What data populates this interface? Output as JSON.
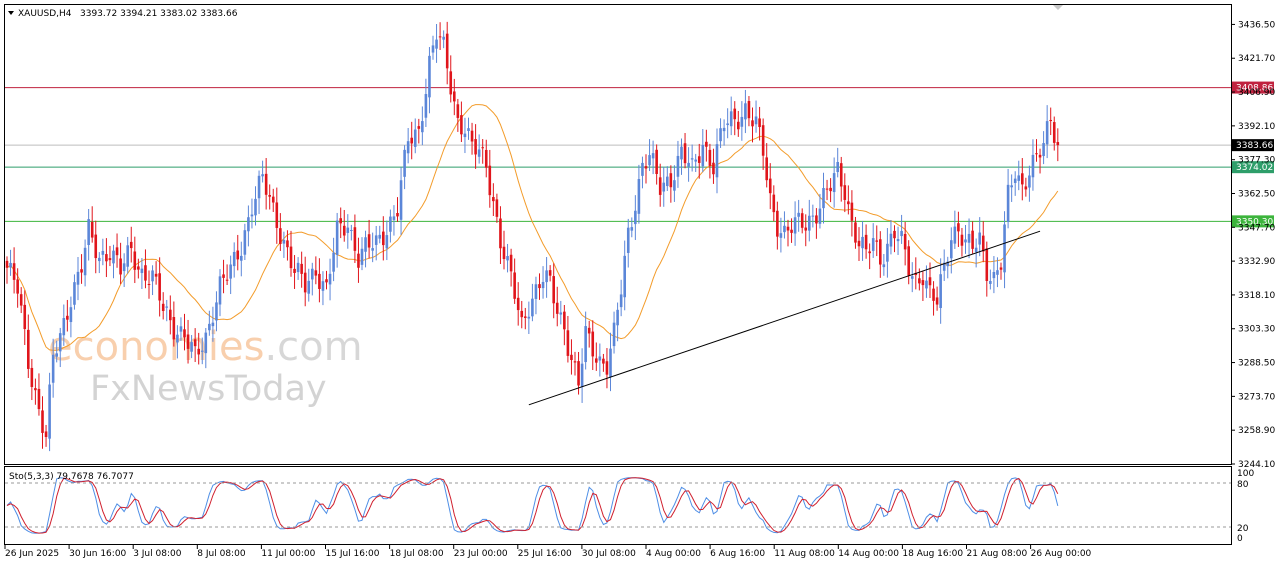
{
  "header": {
    "symbol": "XAUUSD,H4",
    "ohlc": "3393.72 3394.21 3383.02 3383.66"
  },
  "watermark": {
    "line1_a": "economies",
    "line1_b": ".com",
    "line2": "FxNewsToday"
  },
  "indicator": {
    "label": "Sto(5,3,3) 79.7678 76.7077",
    "levels": [
      "100",
      "80",
      "20",
      "0"
    ]
  },
  "colors": {
    "bull": "#5b86d8",
    "bear": "#e0151b",
    "ma": "#f39c2b",
    "resistance": "#c0223f",
    "support1": "#2e9e6a",
    "support2": "#3cb43c",
    "trendline": "#000000",
    "stoch_main": "#4f8fe6",
    "stoch_signal": "#d0202e"
  },
  "chart_data": {
    "type": "candlestick",
    "symbol": "XAUUSD",
    "timeframe": "H4",
    "ylim": [
      3244.1,
      3445.0
    ],
    "y_ticks": [
      "3436.50",
      "3421.70",
      "3406.90",
      "3392.10",
      "3377.30",
      "3362.50",
      "3347.70",
      "3332.90",
      "3318.10",
      "3303.30",
      "3288.50",
      "3273.70",
      "3258.90",
      "3244.10"
    ],
    "x_ticks": [
      "26 Jun 2025",
      "30 Jun 16:00",
      "3 Jul 08:00",
      "8 Jul 08:00",
      "11 Jul 00:00",
      "15 Jul 16:00",
      "18 Jul 08:00",
      "23 Jul 00:00",
      "25 Jul 16:00",
      "30 Jul 08:00",
      "4 Aug 00:00",
      "6 Aug 16:00",
      "11 Aug 08:00",
      "14 Aug 00:00",
      "18 Aug 16:00",
      "21 Aug 08:00",
      "26 Aug 00:00"
    ],
    "current_price": "3383.66",
    "levels": [
      {
        "price": 3408.86,
        "label": "3408.86",
        "kind": "resistance"
      },
      {
        "price": 3374.02,
        "label": "3374.02",
        "kind": "support1"
      },
      {
        "price": 3350.3,
        "label": "3350.30",
        "kind": "support2"
      }
    ],
    "trendline": [
      {
        "bar": 147,
        "price": 3270
      },
      {
        "bar": 291,
        "price": 3346
      }
    ],
    "close_path": [
      [
        0,
        3330
      ],
      [
        3,
        3320
      ],
      [
        6,
        3290
      ],
      [
        9,
        3268
      ],
      [
        11,
        3255
      ],
      [
        13,
        3290
      ],
      [
        15,
        3300
      ],
      [
        18,
        3318
      ],
      [
        21,
        3330
      ],
      [
        23,
        3345
      ],
      [
        26,
        3335
      ],
      [
        29,
        3338
      ],
      [
        32,
        3328
      ],
      [
        35,
        3338
      ],
      [
        38,
        3328
      ],
      [
        41,
        3325
      ],
      [
        44,
        3312
      ],
      [
        47,
        3305
      ],
      [
        50,
        3300
      ],
      [
        53,
        3290
      ],
      [
        56,
        3300
      ],
      [
        58,
        3312
      ],
      [
        60,
        3322
      ],
      [
        63,
        3328
      ],
      [
        66,
        3340
      ],
      [
        69,
        3358
      ],
      [
        72,
        3368
      ],
      [
        75,
        3355
      ],
      [
        78,
        3342
      ],
      [
        81,
        3328
      ],
      [
        84,
        3322
      ],
      [
        87,
        3330
      ],
      [
        90,
        3320
      ],
      [
        93,
        3345
      ],
      [
        96,
        3350
      ],
      [
        99,
        3335
      ],
      [
        101,
        3338
      ],
      [
        104,
        3340
      ],
      [
        107,
        3348
      ],
      [
        110,
        3356
      ],
      [
        113,
        3385
      ],
      [
        116,
        3390
      ],
      [
        119,
        3420
      ],
      [
        121,
        3432
      ],
      [
        123,
        3425
      ],
      [
        125,
        3410
      ],
      [
        127,
        3395
      ],
      [
        129,
        3392
      ],
      [
        131,
        3382
      ],
      [
        133,
        3380
      ],
      [
        135,
        3375
      ],
      [
        137,
        3360
      ],
      [
        139,
        3342
      ],
      [
        141,
        3330
      ],
      [
        143,
        3318
      ],
      [
        145,
        3305
      ],
      [
        147,
        3315
      ],
      [
        149,
        3320
      ],
      [
        151,
        3325
      ],
      [
        153,
        3322
      ],
      [
        155,
        3312
      ],
      [
        157,
        3305
      ],
      [
        159,
        3290
      ],
      [
        161,
        3278
      ],
      [
        163,
        3300
      ],
      [
        165,
        3295
      ],
      [
        167,
        3290
      ],
      [
        169,
        3288
      ],
      [
        171,
        3300
      ],
      [
        173,
        3320
      ],
      [
        175,
        3345
      ],
      [
        177,
        3360
      ],
      [
        179,
        3375
      ],
      [
        181,
        3378
      ],
      [
        184,
        3365
      ],
      [
        187,
        3370
      ],
      [
        190,
        3380
      ],
      [
        193,
        3372
      ],
      [
        196,
        3385
      ],
      [
        199,
        3375
      ],
      [
        202,
        3392
      ],
      [
        205,
        3395
      ],
      [
        208,
        3400
      ],
      [
        211,
        3392
      ],
      [
        213,
        3380
      ],
      [
        215,
        3360
      ],
      [
        217,
        3350
      ],
      [
        219,
        3345
      ],
      [
        222,
        3348
      ],
      [
        225,
        3350
      ],
      [
        228,
        3355
      ],
      [
        230,
        3360
      ],
      [
        232,
        3365
      ],
      [
        234,
        3372
      ],
      [
        236,
        3365
      ],
      [
        238,
        3350
      ],
      [
        240,
        3340
      ],
      [
        242,
        3335
      ],
      [
        244,
        3342
      ],
      [
        246,
        3335
      ],
      [
        248,
        3340
      ],
      [
        250,
        3345
      ],
      [
        252,
        3340
      ],
      [
        254,
        3330
      ],
      [
        256,
        3325
      ],
      [
        258,
        3328
      ],
      [
        260,
        3318
      ],
      [
        262,
        3314
      ],
      [
        264,
        3330
      ],
      [
        266,
        3345
      ],
      [
        268,
        3348
      ],
      [
        270,
        3340
      ],
      [
        272,
        3338
      ],
      [
        274,
        3342
      ],
      [
        276,
        3330
      ],
      [
        278,
        3326
      ],
      [
        280,
        3332
      ],
      [
        282,
        3360
      ],
      [
        284,
        3372
      ],
      [
        286,
        3366
      ],
      [
        288,
        3374
      ],
      [
        290,
        3378
      ],
      [
        292,
        3382
      ],
      [
        294,
        3395
      ],
      [
        296,
        3384
      ]
    ]
  }
}
